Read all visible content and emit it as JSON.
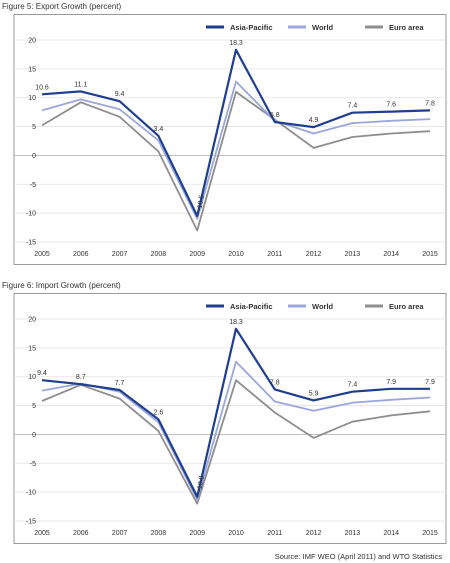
{
  "colors": {
    "asia": "#1f3e8f",
    "world": "#9ba6dd",
    "euro": "#8e8e8e"
  },
  "chart_data": [
    {
      "type": "line",
      "title": "Figure 5: Export Growth (percent)",
      "x": [
        "2005",
        "2006",
        "2007",
        "2008",
        "2009",
        "2010",
        "2011",
        "2012",
        "2013",
        "2014",
        "2015"
      ],
      "ylim": [
        -15,
        20
      ],
      "yticks": [
        "20",
        "15",
        "10",
        "5",
        "0",
        "-5",
        "-10",
        "-15"
      ],
      "legend_position": "top-right",
      "grid": true,
      "series": [
        {
          "name": "Asia-Pacific",
          "color_key": "asia",
          "values": [
            10.6,
            11.1,
            9.4,
            3.4,
            -10.5,
            18.3,
            5.8,
            4.9,
            7.4,
            7.6,
            7.8
          ],
          "labels": [
            "10.6",
            "11.1",
            "9.4",
            "3.4",
            "-10.5",
            "18.3",
            "5.8",
            "4.9",
            "7.4",
            "7.6",
            "7.8"
          ]
        },
        {
          "name": "World",
          "color_key": "world",
          "values": [
            7.8,
            9.7,
            8.0,
            2.6,
            -11.0,
            12.8,
            6.0,
            3.8,
            5.6,
            6.0,
            6.3
          ]
        },
        {
          "name": "Euro area",
          "color_key": "euro",
          "values": [
            5.2,
            9.2,
            6.7,
            0.7,
            -13.0,
            11.0,
            6.2,
            1.3,
            3.2,
            3.8,
            4.2
          ]
        }
      ]
    },
    {
      "type": "line",
      "title": "Figure 6: Import Growth (percent)",
      "x": [
        "2005",
        "2006",
        "2007",
        "2008",
        "2009",
        "2010",
        "2011",
        "2012",
        "2013",
        "2014",
        "2015"
      ],
      "ylim": [
        -15,
        20
      ],
      "yticks": [
        "20",
        "15",
        "10",
        "5",
        "0",
        "-5",
        "-10",
        "-15"
      ],
      "legend_position": "top-right",
      "grid": true,
      "series": [
        {
          "name": "Asia-Pacific",
          "color_key": "asia",
          "values": [
            9.4,
            8.7,
            7.7,
            2.6,
            -10.8,
            18.3,
            7.8,
            5.9,
            7.4,
            7.9,
            7.9
          ],
          "labels": [
            "9.4",
            "8.7",
            "7.7",
            "2.6",
            "-10.8",
            "18.3",
            "7.8",
            "5.9",
            "7.4",
            "7.9",
            "7.9"
          ]
        },
        {
          "name": "World",
          "color_key": "world",
          "values": [
            7.6,
            8.8,
            7.4,
            2.1,
            -11.3,
            12.6,
            5.7,
            4.1,
            5.5,
            6.0,
            6.4
          ]
        },
        {
          "name": "Euro area",
          "color_key": "euro",
          "values": [
            5.8,
            8.6,
            6.2,
            0.6,
            -12.0,
            9.4,
            3.8,
            -0.6,
            2.2,
            3.3,
            4.0
          ]
        }
      ]
    }
  ],
  "source": "Source: IMF WEO (April 2011) and WTO Statistics"
}
